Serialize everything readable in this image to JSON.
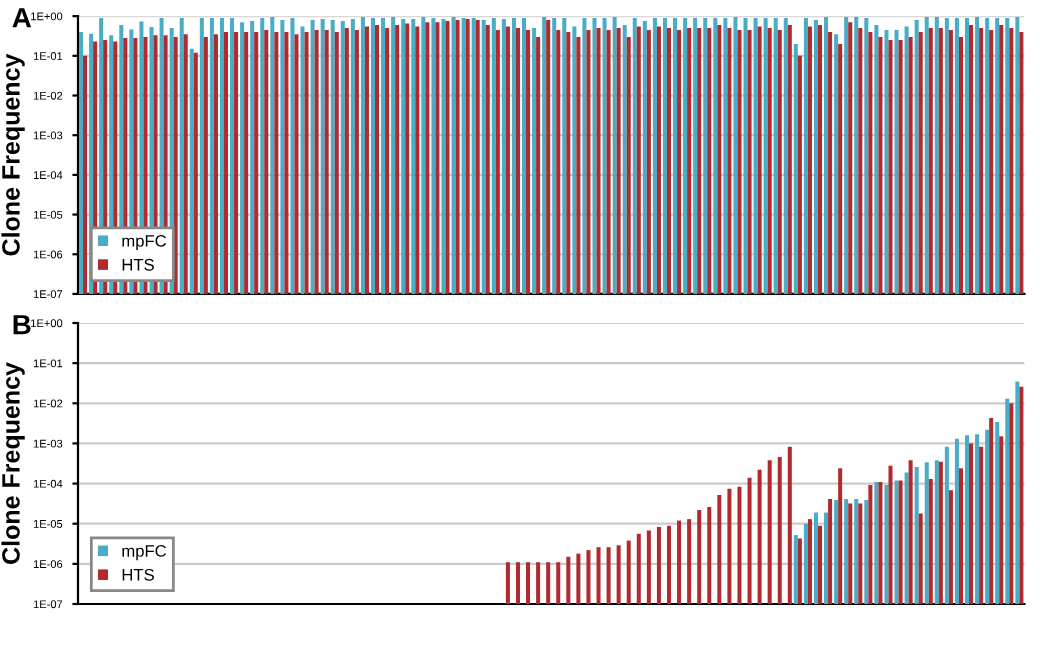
{
  "chart_data": [
    {
      "type": "bar",
      "title": "A",
      "ylabel": "Clone Frequency",
      "log": "y",
      "ylim": [
        1e-07,
        1
      ],
      "yticks": [
        {
          "value": 1e-07,
          "label": "1E-07"
        },
        {
          "value": 1e-06,
          "label": "1E-06"
        },
        {
          "value": 1e-05,
          "label": "1E-05"
        },
        {
          "value": 0.0001,
          "label": "1E-04"
        },
        {
          "value": 0.001,
          "label": "1E-03"
        },
        {
          "value": 0.01,
          "label": "1E-02"
        },
        {
          "value": 0.1,
          "label": "1E-01"
        },
        {
          "value": 1,
          "label": "1E+00"
        }
      ],
      "grid": "y",
      "legend": "bottom left",
      "tick_labels": "y",
      "categories": [
        null,
        null,
        null,
        null,
        null,
        null,
        null,
        null,
        null,
        null,
        null,
        null,
        null,
        null,
        null,
        null,
        null,
        null,
        null,
        null,
        null,
        null,
        null,
        null,
        null,
        null,
        null,
        null,
        null,
        null,
        null,
        null,
        null,
        null,
        null,
        null,
        null,
        null,
        null,
        null,
        null,
        null,
        null,
        null,
        null,
        null,
        null,
        null,
        null,
        null,
        null,
        null,
        null,
        null,
        null,
        null,
        null,
        null,
        null,
        null,
        null,
        null,
        null,
        null,
        null,
        null,
        null,
        null,
        null,
        null,
        null,
        null,
        null,
        null,
        null,
        null,
        null,
        null,
        null,
        null,
        null,
        null,
        null,
        null,
        null,
        null,
        null,
        null,
        null,
        null,
        null,
        null,
        null,
        null
      ],
      "series": [
        {
          "name": "mpFC",
          "color": "#4bacc6",
          "values": [
            0.4,
            0.36,
            0.9,
            0.33,
            0.6,
            0.46,
            0.73,
            0.53,
            0.9,
            0.5,
            0.9,
            0.15,
            0.9,
            0.9,
            0.9,
            0.9,
            0.7,
            0.75,
            0.9,
            0.95,
            0.8,
            0.9,
            0.55,
            0.8,
            0.85,
            0.8,
            0.75,
            0.85,
            0.95,
            0.9,
            0.9,
            0.95,
            0.85,
            0.85,
            0.95,
            0.9,
            0.85,
            0.95,
            0.9,
            0.9,
            0.8,
            0.9,
            0.85,
            0.9,
            0.9,
            0.5,
            0.95,
            0.9,
            0.9,
            0.55,
            0.9,
            0.9,
            0.9,
            0.95,
            0.6,
            0.9,
            0.75,
            0.9,
            0.9,
            0.9,
            0.9,
            0.9,
            0.9,
            0.9,
            0.9,
            0.95,
            0.9,
            0.9,
            0.9,
            0.9,
            0.9,
            0.2,
            0.9,
            0.8,
            0.95,
            0.35,
            0.95,
            0.95,
            0.9,
            0.6,
            0.45,
            0.45,
            0.55,
            0.8,
            0.95,
            0.95,
            0.9,
            0.9,
            0.9,
            0.95,
            0.9,
            0.9,
            0.9,
            0.95
          ]
        },
        {
          "name": "HTS",
          "color": "#b02a2e",
          "values": [
            0.1,
            0.23,
            0.25,
            0.23,
            0.28,
            0.28,
            0.3,
            0.33,
            0.33,
            0.3,
            0.35,
            0.12,
            0.3,
            0.35,
            0.4,
            0.4,
            0.4,
            0.4,
            0.45,
            0.4,
            0.4,
            0.35,
            0.4,
            0.45,
            0.45,
            0.4,
            0.5,
            0.45,
            0.55,
            0.6,
            0.5,
            0.6,
            0.65,
            0.55,
            0.7,
            0.7,
            0.75,
            0.8,
            0.85,
            0.8,
            0.6,
            0.45,
            0.55,
            0.5,
            0.45,
            0.3,
            0.8,
            0.45,
            0.4,
            0.3,
            0.45,
            0.5,
            0.45,
            0.5,
            0.3,
            0.55,
            0.45,
            0.55,
            0.5,
            0.45,
            0.5,
            0.5,
            0.5,
            0.6,
            0.5,
            0.45,
            0.45,
            0.55,
            0.5,
            0.45,
            0.6,
            0.1,
            0.55,
            0.6,
            0.4,
            0.2,
            0.7,
            0.5,
            0.4,
            0.3,
            0.25,
            0.25,
            0.3,
            0.4,
            0.5,
            0.5,
            0.45,
            0.3,
            0.6,
            0.5,
            0.45,
            0.6,
            0.5,
            0.4
          ]
        }
      ]
    },
    {
      "type": "bar",
      "title": "B",
      "ylabel": "Clone Frequency",
      "log": "y",
      "ylim": [
        1e-07,
        1
      ],
      "yticks": [
        {
          "value": 1e-07,
          "label": "1E-07"
        },
        {
          "value": 1e-06,
          "label": "1E-06"
        },
        {
          "value": 1e-05,
          "label": "1E-05"
        },
        {
          "value": 0.0001,
          "label": "1E-04"
        },
        {
          "value": 0.001,
          "label": "1E-03"
        },
        {
          "value": 0.01,
          "label": "1E-02"
        },
        {
          "value": 0.1,
          "label": "1E-01"
        },
        {
          "value": 1,
          "label": "1E+00"
        }
      ],
      "grid": "y",
      "legend": "bottom left",
      "categories": [
        null,
        null,
        null,
        null,
        null,
        null,
        null,
        null,
        null,
        null,
        null,
        null,
        null,
        null,
        null,
        null,
        null,
        null,
        null,
        null,
        null,
        null,
        null,
        null,
        null,
        null,
        null,
        null,
        null,
        null,
        null,
        null,
        null,
        null,
        null,
        null,
        null,
        null,
        null,
        null,
        null,
        null,
        null,
        null,
        null,
        null,
        null,
        null,
        null,
        null,
        null,
        null,
        null,
        null,
        null,
        null,
        null,
        null,
        null,
        null,
        null,
        null,
        null,
        null,
        null,
        null,
        null,
        null,
        null,
        null,
        null,
        null,
        null,
        null,
        null,
        null,
        null,
        null,
        null,
        null,
        null,
        null,
        null,
        null,
        null,
        null,
        null,
        null,
        null,
        null,
        null,
        null,
        null,
        null
      ],
      "series": [
        {
          "name": "mpFC",
          "color": "#4bacc6",
          "values": [
            null,
            null,
            null,
            null,
            null,
            null,
            null,
            null,
            null,
            null,
            null,
            null,
            null,
            null,
            null,
            null,
            null,
            null,
            null,
            null,
            null,
            null,
            null,
            null,
            null,
            null,
            null,
            null,
            null,
            null,
            null,
            null,
            null,
            null,
            null,
            null,
            null,
            null,
            null,
            null,
            null,
            null,
            null,
            null,
            null,
            null,
            null,
            null,
            null,
            null,
            null,
            null,
            null,
            null,
            null,
            null,
            null,
            null,
            null,
            null,
            null,
            null,
            null,
            null,
            null,
            null,
            null,
            null,
            null,
            null,
            null,
            5.2e-06,
            1e-05,
            1.9e-05,
            1.9e-05,
            3.9e-05,
            4.1e-05,
            4.1e-05,
            3.9e-05,
            0.00011,
            9.2e-05,
            0.00012,
            0.00019,
            0.00026,
            0.00034,
            0.00038,
            0.00083,
            0.0013,
            0.0016,
            0.0017,
            0.0022,
            0.0034,
            0.013,
            0.035
          ]
        },
        {
          "name": "HTS",
          "color": "#b02a2e",
          "values": [
            null,
            null,
            null,
            null,
            null,
            null,
            null,
            null,
            null,
            null,
            null,
            null,
            null,
            null,
            null,
            null,
            null,
            null,
            null,
            null,
            null,
            null,
            null,
            null,
            null,
            null,
            null,
            null,
            null,
            null,
            null,
            null,
            null,
            null,
            null,
            null,
            null,
            null,
            null,
            null,
            null,
            null,
            1.1e-06,
            1.1e-06,
            1.1e-06,
            1.1e-06,
            1.1e-06,
            1.1e-06,
            1.5e-06,
            1.8e-06,
            2.2e-06,
            2.6e-06,
            2.6e-06,
            2.9e-06,
            3.8e-06,
            5.6e-06,
            6.8e-06,
            8.3e-06,
            8.9e-06,
            1.2e-05,
            1.3e-05,
            2.2e-05,
            2.6e-05,
            5.2e-05,
            7.4e-05,
            8.3e-05,
            0.00014,
            0.00022,
            0.00038,
            0.00046,
            0.00083,
            4.3e-06,
            1.3e-05,
            8.9e-06,
            4.1e-05,
            0.00024,
            3.2e-05,
            3.2e-05,
            9.2e-05,
            0.00011,
            0.00028,
            0.00012,
            0.00038,
            1.8e-05,
            0.00013,
            0.00035,
            6.8e-05,
            0.00024,
            0.001,
            0.00083,
            0.0043,
            0.0015,
            0.01,
            0.026
          ]
        }
      ]
    }
  ]
}
